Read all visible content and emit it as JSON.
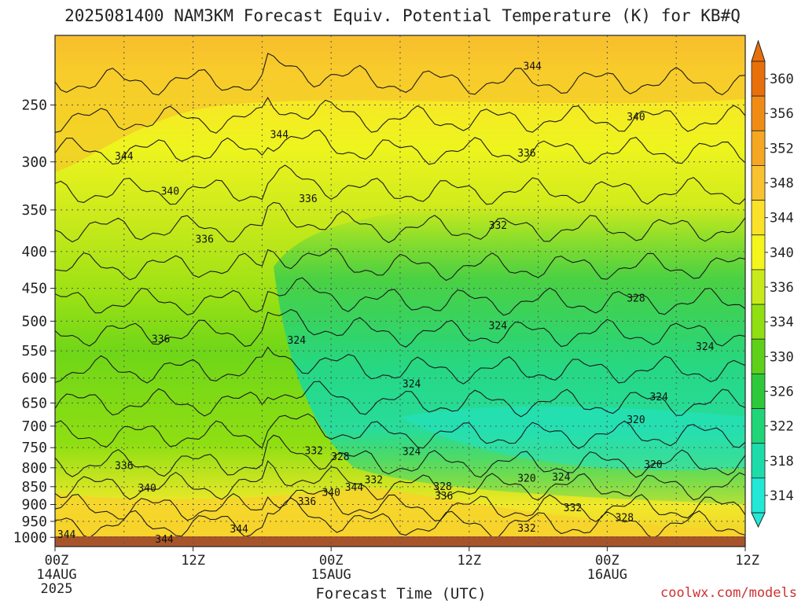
{
  "chart_data": {
    "type": "heatmap",
    "title": "2025081400 NAM3KM Forecast Equiv. Potential Temperature (K) for KB#Q",
    "xlabel": "Forecast Time (UTC)",
    "ylabel": "",
    "x_ticks": [
      {
        "hour": 0,
        "label": "00Z",
        "sub1": "14AUG",
        "sub2": "2025"
      },
      {
        "hour": 12,
        "label": "12Z",
        "sub1": "",
        "sub2": ""
      },
      {
        "hour": 24,
        "label": "00Z",
        "sub1": "15AUG",
        "sub2": ""
      },
      {
        "hour": 36,
        "label": "12Z",
        "sub1": "",
        "sub2": ""
      },
      {
        "hour": 48,
        "label": "00Z",
        "sub1": "16AUG",
        "sub2": ""
      },
      {
        "hour": 60,
        "label": "12Z",
        "sub1": "",
        "sub2": ""
      }
    ],
    "xlim": [
      0,
      60
    ],
    "y_ticks": [
      250,
      300,
      350,
      400,
      450,
      500,
      550,
      600,
      650,
      700,
      750,
      800,
      850,
      900,
      950,
      1000
    ],
    "ylim": [
      1030,
      200
    ],
    "y_scale": "log",
    "grid": true,
    "colorbar": {
      "ticks": [
        360,
        356,
        352,
        348,
        344,
        340,
        336,
        334,
        330,
        326,
        322,
        318,
        314
      ],
      "colors": [
        "#e8700a",
        "#f08c16",
        "#f5a622",
        "#f8c230",
        "#fbe12a",
        "#f3f51c",
        "#c8ea1c",
        "#8fdf12",
        "#5ed01a",
        "#2ec93a",
        "#20d478",
        "#1ddcaa",
        "#22e8d6"
      ]
    },
    "contour_labels": [
      {
        "t": 41.5,
        "p": 221,
        "v": "344"
      },
      {
        "t": 50.5,
        "p": 260,
        "v": "340"
      },
      {
        "t": 19.5,
        "p": 275,
        "v": "344"
      },
      {
        "t": 6.0,
        "p": 295,
        "v": "344"
      },
      {
        "t": 41.0,
        "p": 292,
        "v": "336"
      },
      {
        "t": 10.0,
        "p": 330,
        "v": "340"
      },
      {
        "t": 22.0,
        "p": 338,
        "v": "336"
      },
      {
        "t": 38.5,
        "p": 368,
        "v": "332"
      },
      {
        "t": 13.0,
        "p": 385,
        "v": "336"
      },
      {
        "t": 50.5,
        "p": 465,
        "v": "328"
      },
      {
        "t": 38.5,
        "p": 508,
        "v": "324"
      },
      {
        "t": 9.2,
        "p": 530,
        "v": "336"
      },
      {
        "t": 21.0,
        "p": 532,
        "v": "324"
      },
      {
        "t": 56.5,
        "p": 543,
        "v": "324"
      },
      {
        "t": 31.0,
        "p": 612,
        "v": "324"
      },
      {
        "t": 52.5,
        "p": 638,
        "v": "324"
      },
      {
        "t": 50.5,
        "p": 686,
        "v": "320"
      },
      {
        "t": 22.5,
        "p": 758,
        "v": "332"
      },
      {
        "t": 24.8,
        "p": 773,
        "v": "328"
      },
      {
        "t": 31.0,
        "p": 760,
        "v": "324"
      },
      {
        "t": 6.0,
        "p": 795,
        "v": "336"
      },
      {
        "t": 52.0,
        "p": 792,
        "v": "320"
      },
      {
        "t": 27.7,
        "p": 832,
        "v": "332"
      },
      {
        "t": 41.0,
        "p": 828,
        "v": "320"
      },
      {
        "t": 44.0,
        "p": 825,
        "v": "324"
      },
      {
        "t": 8.0,
        "p": 855,
        "v": "340"
      },
      {
        "t": 26.0,
        "p": 853,
        "v": "344"
      },
      {
        "t": 33.7,
        "p": 850,
        "v": "328"
      },
      {
        "t": 24.0,
        "p": 867,
        "v": "340"
      },
      {
        "t": 33.8,
        "p": 877,
        "v": "336"
      },
      {
        "t": 21.9,
        "p": 892,
        "v": "336"
      },
      {
        "t": 45.0,
        "p": 910,
        "v": "332"
      },
      {
        "t": 49.5,
        "p": 940,
        "v": "328"
      },
      {
        "t": 16.0,
        "p": 975,
        "v": "344"
      },
      {
        "t": 41.0,
        "p": 972,
        "v": "332"
      },
      {
        "t": 1.0,
        "p": 992,
        "v": "344"
      },
      {
        "t": 9.5,
        "p": 1007,
        "v": "344"
      }
    ]
  },
  "credit": "coolwx.com/models"
}
